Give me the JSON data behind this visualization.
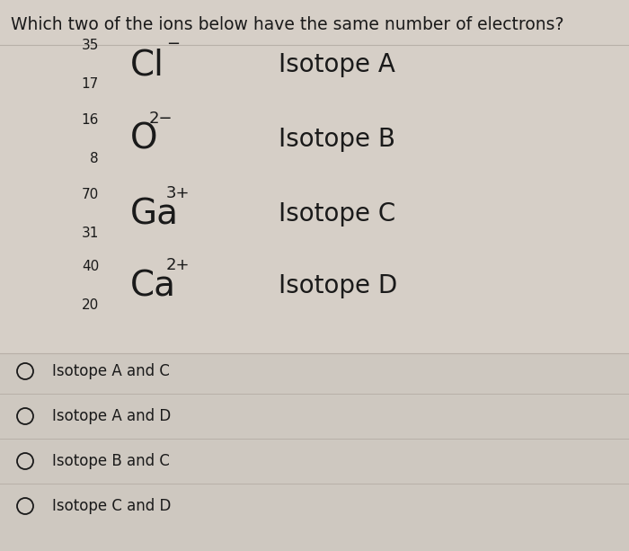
{
  "title": "Which two of the ions below have the same number of electrons?",
  "background_color": "#d6cfc7",
  "title_fontsize": 13.5,
  "text_color": "#1a1a1a",
  "line_color": "#b8b0a8",
  "choice_bg": "#cec8c0",
  "isotopes": [
    {
      "mass": "35",
      "atomic_num": "17",
      "symbol": "Cl",
      "charge": "−",
      "label": "Isotope A"
    },
    {
      "mass": "16",
      "atomic_num": "8",
      "symbol": "O",
      "charge": "2−",
      "label": "Isotope B"
    },
    {
      "mass": "70",
      "atomic_num": "31",
      "symbol": "Ga",
      "charge": "3+",
      "label": "Isotope C"
    },
    {
      "mass": "40",
      "atomic_num": "20",
      "symbol": "Ca",
      "charge": "2+",
      "label": "Isotope D"
    }
  ],
  "choices": [
    "Isotope A and C",
    "Isotope A and D",
    "Isotope B and C",
    "Isotope C and D"
  ]
}
